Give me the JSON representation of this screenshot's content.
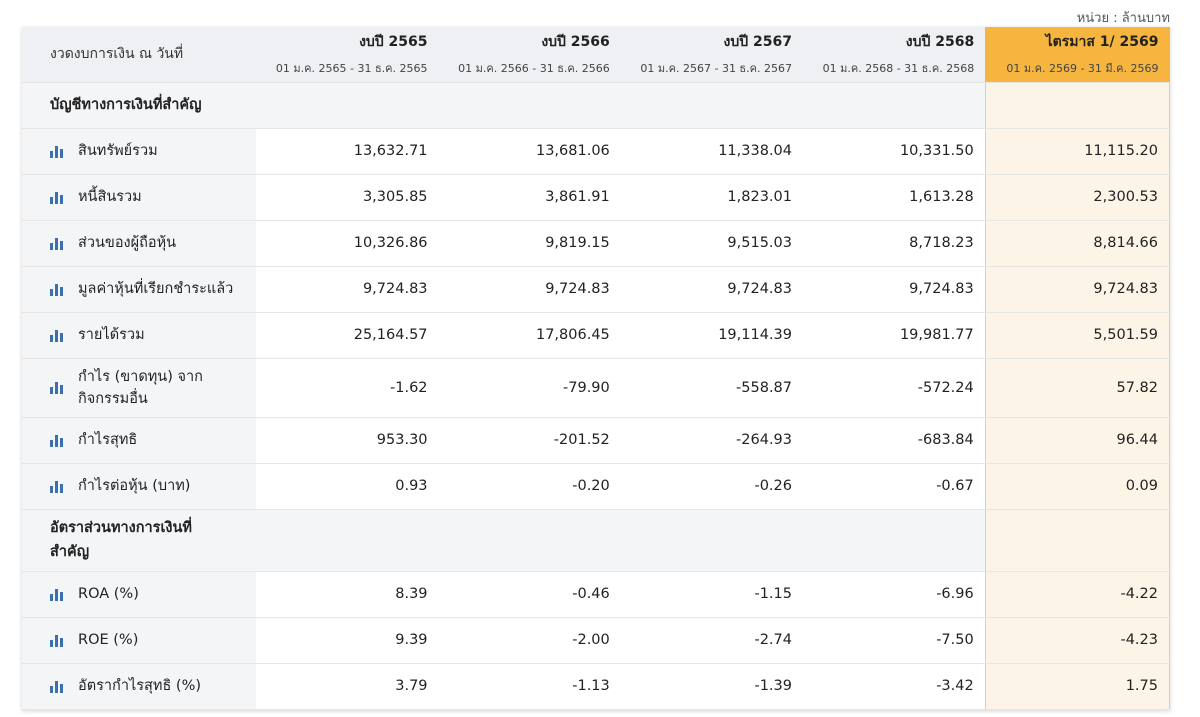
{
  "unit_note": "หน่วย : ล้านบาท",
  "header": {
    "label": "งวดงบการเงิน ณ วันที่",
    "periods": [
      {
        "title": "งบปี 2565",
        "range": "01 ม.ค. 2565 - 31 ธ.ค. 2565"
      },
      {
        "title": "งบปี 2566",
        "range": "01 ม.ค. 2566 - 31 ธ.ค. 2566"
      },
      {
        "title": "งบปี 2567",
        "range": "01 ม.ค. 2567 - 31 ธ.ค. 2567"
      },
      {
        "title": "งบปี 2568",
        "range": "01 ม.ค. 2568 - 31 ธ.ค. 2568"
      },
      {
        "title": "ไตรมาส 1/ 2569",
        "range": "01 ม.ค. 2569 - 31 มี.ค. 2569"
      }
    ]
  },
  "sections": [
    {
      "title": "บัญชีทางการเงินที่สำคัญ",
      "rows": [
        {
          "label": "สินทรัพย์รวม",
          "values": [
            "13,632.71",
            "13,681.06",
            "11,338.04",
            "10,331.50",
            "11,115.20"
          ]
        },
        {
          "label": "หนี้สินรวม",
          "values": [
            "3,305.85",
            "3,861.91",
            "1,823.01",
            "1,613.28",
            "2,300.53"
          ]
        },
        {
          "label": "ส่วนของผู้ถือหุ้น",
          "values": [
            "10,326.86",
            "9,819.15",
            "9,515.03",
            "8,718.23",
            "8,814.66"
          ]
        },
        {
          "label": "มูลค่าหุ้นที่เรียกชำระแล้ว",
          "values": [
            "9,724.83",
            "9,724.83",
            "9,724.83",
            "9,724.83",
            "9,724.83"
          ]
        },
        {
          "label": "รายได้รวม",
          "values": [
            "25,164.57",
            "17,806.45",
            "19,114.39",
            "19,981.77",
            "5,501.59"
          ]
        },
        {
          "label": "กำไร (ขาดทุน) จากกิจกรรมอื่น",
          "values": [
            "-1.62",
            "-79.90",
            "-558.87",
            "-572.24",
            "57.82"
          ]
        },
        {
          "label": "กำไรสุทธิ",
          "values": [
            "953.30",
            "-201.52",
            "-264.93",
            "-683.84",
            "96.44"
          ]
        },
        {
          "label": "กำไรต่อหุ้น (บาท)",
          "values": [
            "0.93",
            "-0.20",
            "-0.26",
            "-0.67",
            "0.09"
          ]
        }
      ]
    },
    {
      "title": "อัตราส่วนทางการเงินที่สำคัญ",
      "rows": [
        {
          "label": "ROA (%)",
          "values": [
            "8.39",
            "-0.46",
            "-1.15",
            "-6.96",
            "-4.22"
          ]
        },
        {
          "label": "ROE (%)",
          "values": [
            "9.39",
            "-2.00",
            "-2.74",
            "-7.50",
            "-4.23"
          ]
        },
        {
          "label": "อัตรากำไรสุทธิ (%)",
          "values": [
            "3.79",
            "-1.13",
            "-1.39",
            "-3.42",
            "1.75"
          ]
        }
      ]
    }
  ],
  "colors": {
    "highlight_header": "#f6b53f",
    "highlight_column": "#fdf4e8",
    "chart_icon": "#3a6fb0"
  },
  "icons": {
    "row_chart": "bar-chart-icon"
  }
}
